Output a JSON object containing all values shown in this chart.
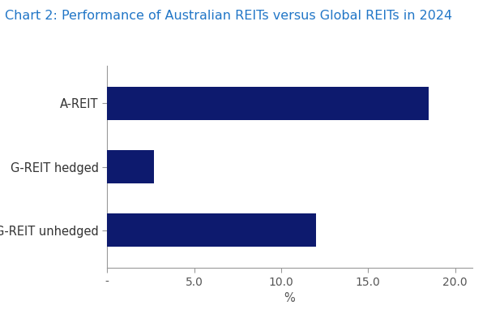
{
  "title": "Chart 2: Performance of Australian REITs versus Global REITs in 2024",
  "title_color": "#2176C7",
  "title_fontsize": 11.5,
  "categories": [
    "G-REIT unhedged",
    "G-REIT hedged",
    "A-REIT"
  ],
  "values": [
    12.0,
    2.7,
    18.5
  ],
  "bar_color": "#0D1A6E",
  "background_color": "#FFFFFF",
  "xlabel": "%",
  "xlim": [
    0,
    21
  ],
  "xticks": [
    0,
    5.0,
    10.0,
    15.0,
    20.0
  ],
  "xtick_labels": [
    "-",
    "5.0",
    "10.0",
    "15.0",
    "20.0"
  ],
  "bar_height": 0.52,
  "ylabel_fontsize": 10.5,
  "tick_fontsize": 10,
  "xlabel_fontsize": 10.5,
  "spine_color": "#999999",
  "tick_color": "#555555"
}
